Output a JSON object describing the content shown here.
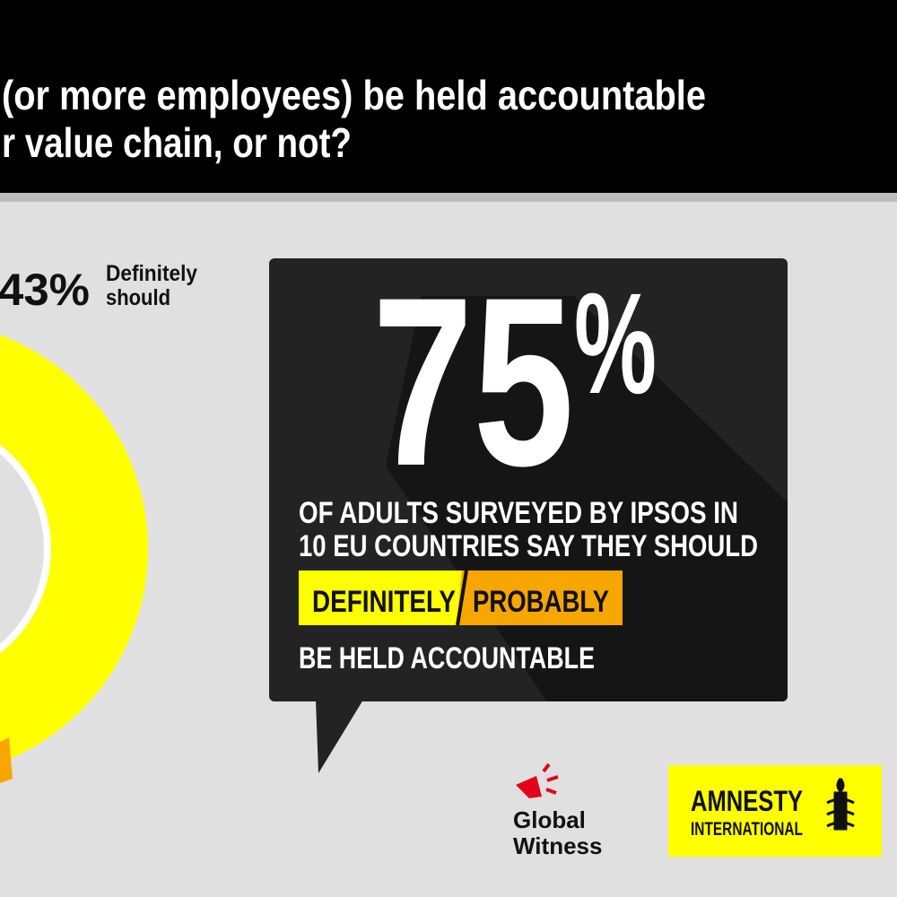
{
  "header": {
    "question_lines": [
      "(or more employees) be held accountable",
      "r value chain, or not?"
    ]
  },
  "donut": {
    "label_value": "43%",
    "label_text_lines": [
      "Definitely",
      "should"
    ]
  },
  "callout": {
    "headline_number": "75",
    "headline_unit": "%",
    "lines": [
      "OF ADULTS SURVEYED BY IPSOS IN",
      "10 EU COUNTRIES SAY THEY SHOULD"
    ],
    "options": [
      "DEFINITELY",
      "PROBABLY"
    ],
    "closing": "BE HELD ACCOUNTABLE"
  },
  "logos": {
    "global_witness": [
      "Global",
      "Witness"
    ],
    "amnesty": [
      "AMNESTY",
      "INTERNATIONAL"
    ]
  }
}
